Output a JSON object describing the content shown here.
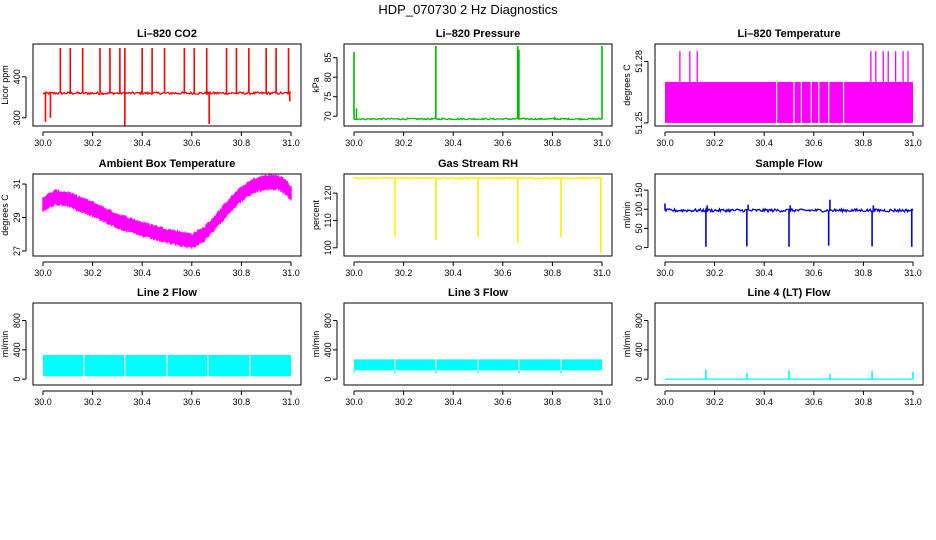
{
  "figure_title": "HDP_070730  2 Hz Diagnostics",
  "chart_data": [
    {
      "type": "line",
      "render": "line_spikes",
      "title": "Li–820 CO2",
      "ylabel": "Licor ppm",
      "color": "#ff0000",
      "xlim": [
        30.0,
        31.0
      ],
      "ylim": [
        280,
        480
      ],
      "yticks": [
        300,
        400
      ],
      "xticks": [
        "30.0",
        "30.2",
        "30.4",
        "30.6",
        "30.8",
        "31.0"
      ],
      "baseline": 360,
      "noise": 3,
      "spikes": [
        {
          "x": 30.01,
          "y": 290
        },
        {
          "x": 30.03,
          "y": 300
        },
        {
          "x": 30.07,
          "y": 470
        },
        {
          "x": 30.11,
          "y": 470
        },
        {
          "x": 30.16,
          "y": 470
        },
        {
          "x": 30.23,
          "y": 470
        },
        {
          "x": 30.27,
          "y": 470
        },
        {
          "x": 30.31,
          "y": 470
        },
        {
          "x": 30.33,
          "y": 470
        },
        {
          "x": 30.33,
          "y": 280
        },
        {
          "x": 30.4,
          "y": 470
        },
        {
          "x": 30.44,
          "y": 470
        },
        {
          "x": 30.49,
          "y": 470
        },
        {
          "x": 30.57,
          "y": 470
        },
        {
          "x": 30.61,
          "y": 470
        },
        {
          "x": 30.66,
          "y": 470
        },
        {
          "x": 30.67,
          "y": 285
        },
        {
          "x": 30.74,
          "y": 470
        },
        {
          "x": 30.78,
          "y": 470
        },
        {
          "x": 30.83,
          "y": 470
        },
        {
          "x": 30.9,
          "y": 470
        },
        {
          "x": 30.94,
          "y": 470
        },
        {
          "x": 30.99,
          "y": 470
        },
        {
          "x": 30.995,
          "y": 340
        }
      ]
    },
    {
      "type": "line",
      "render": "line_spikes",
      "title": "Li–820 Pressure",
      "ylabel": "kPa",
      "color": "#00bb00",
      "xlim": [
        30.0,
        31.0
      ],
      "ylim": [
        67.5,
        88.5
      ],
      "yticks": [
        70,
        75,
        80,
        85
      ],
      "xticks": [
        "30.0",
        "30.2",
        "30.4",
        "30.6",
        "30.8",
        "31.0"
      ],
      "baseline": 69.3,
      "noise": 0.2,
      "spikes": [
        {
          "x": 30.0,
          "y": 86.5
        },
        {
          "x": 30.01,
          "y": 72
        },
        {
          "x": 30.33,
          "y": 88
        },
        {
          "x": 30.66,
          "y": 88
        },
        {
          "x": 30.665,
          "y": 87
        },
        {
          "x": 30.81,
          "y": 69.9
        },
        {
          "x": 31.0,
          "y": 88
        }
      ]
    },
    {
      "type": "bar",
      "render": "dense_band",
      "title": "Li–820 Temperature",
      "ylabel": "degrees C",
      "color": "#ff00ff",
      "xlim": [
        30.0,
        31.0
      ],
      "ylim": [
        51.2485,
        51.2885
      ],
      "yticks": [
        51.25,
        51.28
      ],
      "xticks": [
        "30.0",
        "30.2",
        "30.4",
        "30.6",
        "30.8",
        "31.0"
      ],
      "band_low": 51.25,
      "band_high": 51.27,
      "gaps": [
        30.45,
        30.52,
        30.55,
        30.59,
        30.62,
        30.66,
        30.72
      ],
      "spikes": [
        {
          "x": 30.06,
          "y": 51.285
        },
        {
          "x": 30.1,
          "y": 51.285
        },
        {
          "x": 30.13,
          "y": 51.285
        },
        {
          "x": 30.83,
          "y": 51.285
        },
        {
          "x": 30.85,
          "y": 51.285
        },
        {
          "x": 30.88,
          "y": 51.285
        },
        {
          "x": 30.9,
          "y": 51.285
        },
        {
          "x": 30.93,
          "y": 51.285
        },
        {
          "x": 30.96,
          "y": 51.285
        },
        {
          "x": 30.98,
          "y": 51.285
        }
      ]
    },
    {
      "type": "area",
      "render": "curve_band",
      "title": "Ambient Box Temperature",
      "ylabel": "degrees C",
      "color": "#ff00ff",
      "xlim": [
        30.0,
        31.0
      ],
      "ylim": [
        26.7,
        31.6
      ],
      "yticks": [
        27,
        29,
        31
      ],
      "xticks": [
        "30.0",
        "30.2",
        "30.4",
        "30.6",
        "30.8",
        "31.0"
      ],
      "band_width": 0.7,
      "curve_x": [
        30.0,
        30.05,
        30.1,
        30.2,
        30.3,
        30.4,
        30.5,
        30.6,
        30.65,
        30.7,
        30.75,
        30.8,
        30.85,
        30.9,
        30.95,
        30.98,
        31.0
      ],
      "curve_y": [
        29.8,
        30.2,
        30.1,
        29.5,
        28.8,
        28.3,
        27.9,
        27.6,
        28.0,
        28.8,
        29.7,
        30.4,
        30.9,
        31.1,
        31.1,
        30.8,
        30.4
      ]
    },
    {
      "type": "line",
      "render": "line_spikes",
      "title": "Gas Stream RH",
      "ylabel": "percent",
      "color": "#ffee00",
      "xlim": [
        30.0,
        31.0
      ],
      "ylim": [
        97,
        127
      ],
      "yticks": [
        100,
        110,
        120
      ],
      "xticks": [
        "30.0",
        "30.2",
        "30.4",
        "30.6",
        "30.8",
        "31.0"
      ],
      "baseline": 125.5,
      "noise": 0.25,
      "spikes": [
        {
          "x": 30.165,
          "y": 104
        },
        {
          "x": 30.33,
          "y": 103
        },
        {
          "x": 30.5,
          "y": 104
        },
        {
          "x": 30.66,
          "y": 102
        },
        {
          "x": 30.835,
          "y": 104
        },
        {
          "x": 30.995,
          "y": 98
        }
      ]
    },
    {
      "type": "line",
      "render": "line_spikes",
      "title": "Sample Flow",
      "ylabel": "ml/min",
      "color": "#0000dd",
      "xlim": [
        30.0,
        31.0
      ],
      "ylim": [
        -22,
        192
      ],
      "yticks": [
        0,
        50,
        100,
        150
      ],
      "xticks": [
        "30.0",
        "30.2",
        "30.4",
        "30.6",
        "30.8",
        "31.0"
      ],
      "baseline": 97,
      "noise": 4,
      "spikes": [
        {
          "x": 30.0,
          "y": 115
        },
        {
          "x": 30.165,
          "y": 2
        },
        {
          "x": 30.17,
          "y": 110
        },
        {
          "x": 30.33,
          "y": 3
        },
        {
          "x": 30.335,
          "y": 112
        },
        {
          "x": 30.5,
          "y": 2
        },
        {
          "x": 30.505,
          "y": 110
        },
        {
          "x": 30.66,
          "y": 5
        },
        {
          "x": 30.665,
          "y": 125
        },
        {
          "x": 30.835,
          "y": 3
        },
        {
          "x": 30.84,
          "y": 110
        },
        {
          "x": 30.995,
          "y": 2
        }
      ]
    },
    {
      "type": "bar",
      "render": "dense_band",
      "title": "Line 2 Flow",
      "ylabel": "ml/min",
      "color": "#00ffff",
      "xlim": [
        30.0,
        31.0
      ],
      "ylim": [
        -80,
        1040
      ],
      "yticks": [
        0,
        400,
        800
      ],
      "xticks": [
        "30.0",
        "30.2",
        "30.4",
        "30.6",
        "30.8",
        "31.0"
      ],
      "band_low": 40,
      "band_high": 330,
      "gaps": [
        30.165,
        30.33,
        30.5,
        30.665,
        30.835
      ],
      "spikes": []
    },
    {
      "type": "bar",
      "render": "dense_band",
      "title": "Line 3 Flow",
      "ylabel": "ml/min",
      "color": "#00ffff",
      "xlim": [
        30.0,
        31.0
      ],
      "ylim": [
        -80,
        1040
      ],
      "yticks": [
        0,
        400,
        800
      ],
      "xticks": [
        "30.0",
        "30.2",
        "30.4",
        "30.6",
        "30.8",
        "31.0"
      ],
      "band_low": 120,
      "band_high": 270,
      "gaps": [
        30.165,
        30.33,
        30.5,
        30.665,
        30.835
      ],
      "spikes": [
        {
          "x": 30.0,
          "y": 90
        },
        {
          "x": 30.165,
          "y": 80
        },
        {
          "x": 30.33,
          "y": 80
        },
        {
          "x": 30.5,
          "y": 80
        },
        {
          "x": 30.665,
          "y": 80
        },
        {
          "x": 30.835,
          "y": 80
        }
      ]
    },
    {
      "type": "line",
      "render": "line_spikes",
      "title": "Line 4 (LT) Flow",
      "ylabel": "ml/min",
      "color": "#00ffff",
      "xlim": [
        30.0,
        31.0
      ],
      "ylim": [
        -80,
        1040
      ],
      "yticks": [
        0,
        400,
        800
      ],
      "xticks": [
        "30.0",
        "30.2",
        "30.4",
        "30.6",
        "30.8",
        "31.0"
      ],
      "baseline": 0,
      "noise": 0,
      "spikes": [
        {
          "x": 30.165,
          "y": 130
        },
        {
          "x": 30.33,
          "y": 80
        },
        {
          "x": 30.5,
          "y": 120
        },
        {
          "x": 30.665,
          "y": 70
        },
        {
          "x": 30.835,
          "y": 110
        },
        {
          "x": 31.0,
          "y": 100
        }
      ]
    }
  ]
}
